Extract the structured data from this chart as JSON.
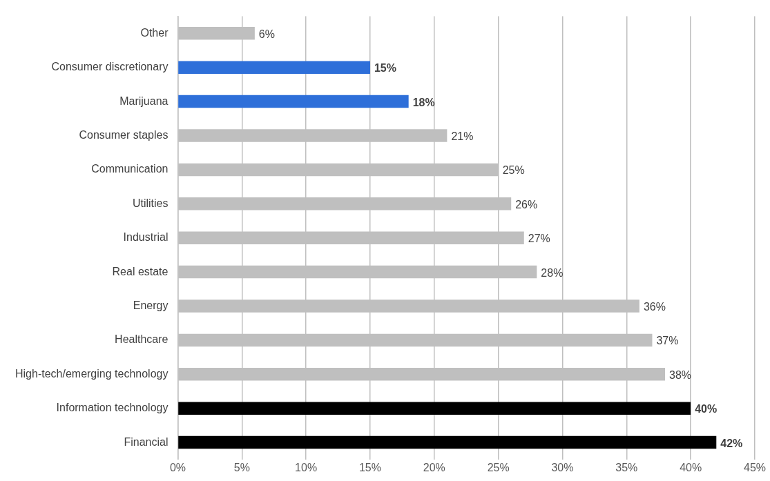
{
  "chart_data": {
    "type": "bar",
    "orientation": "horizontal",
    "categories": [
      "Other",
      "Consumer discretionary",
      "Marijuana",
      "Consumer staples",
      "Communication",
      "Utilities",
      "Industrial",
      "Real estate",
      "Energy",
      "Healthcare",
      "High-tech/emerging technology",
      "Information technology",
      "Financial"
    ],
    "values": [
      6,
      15,
      18,
      21,
      25,
      26,
      27,
      28,
      36,
      37,
      38,
      40,
      42
    ],
    "colors": [
      "#bfbfbf",
      "#2e6fd9",
      "#2e6fd9",
      "#bfbfbf",
      "#bfbfbf",
      "#bfbfbf",
      "#bfbfbf",
      "#bfbfbf",
      "#bfbfbf",
      "#bfbfbf",
      "#bfbfbf",
      "#000000",
      "#000000"
    ],
    "value_labels": [
      "6%",
      "15%",
      "18%",
      "21%",
      "25%",
      "26%",
      "27%",
      "28%",
      "36%",
      "37%",
      "38%",
      "40%",
      "42%"
    ],
    "xlim": [
      0,
      45
    ],
    "xticks": [
      {
        "value": 0,
        "label": "0%"
      },
      {
        "value": 5,
        "label": "5%"
      },
      {
        "value": 10,
        "label": "10%"
      },
      {
        "value": 15,
        "label": "15%"
      },
      {
        "value": 20,
        "label": "20%"
      },
      {
        "value": 25,
        "label": "25%"
      },
      {
        "value": 30,
        "label": "30%"
      },
      {
        "value": 35,
        "label": "35%"
      },
      {
        "value": 40,
        "label": "40%"
      },
      {
        "value": 45,
        "label": "45%"
      }
    ],
    "grid": "x",
    "legend": false
  }
}
